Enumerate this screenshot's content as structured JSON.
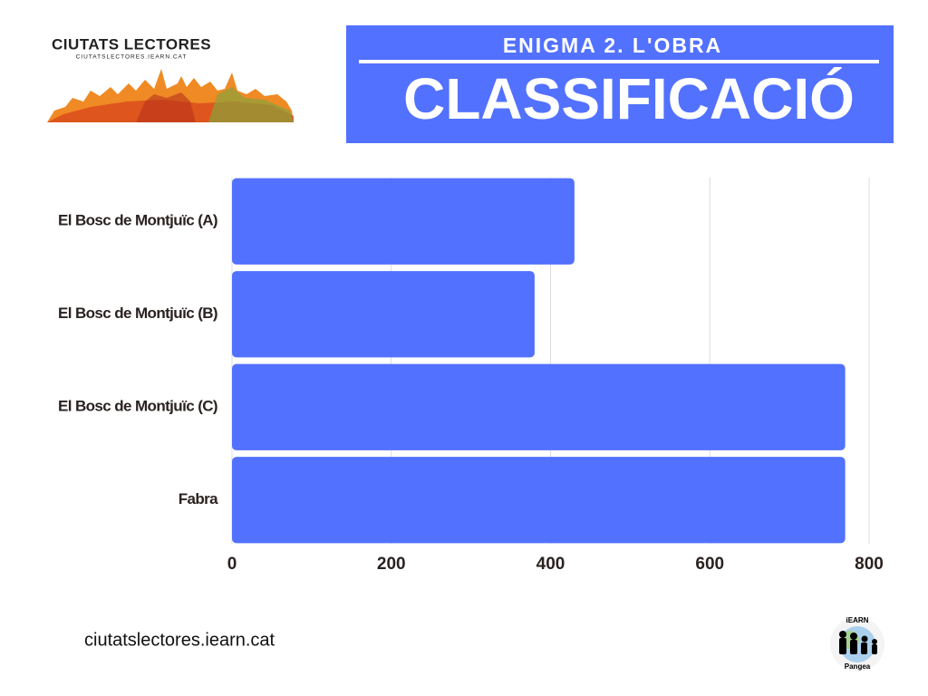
{
  "logo": {
    "title": "CIUTATS LECTORES",
    "subtitle": "CIUTATSLECTORES.IEARN.CAT"
  },
  "header": {
    "kicker": "ENIGMA 2. L'OBRA",
    "title": "CLASSIFICACIÓ"
  },
  "chart_data": {
    "type": "bar",
    "orientation": "horizontal",
    "categories": [
      "El Bosc de Montjuïc (A)",
      "El Bosc de Montjuïc (B)",
      "El Bosc de Montjuïc (C)",
      "Fabra"
    ],
    "values": [
      430,
      380,
      770,
      770
    ],
    "color": "#5271ff",
    "xlim": [
      0,
      800
    ],
    "xticks": [
      0,
      200,
      400,
      600,
      800
    ],
    "grid": true
  },
  "footer": {
    "url": "ciutatslectores.iearn.cat"
  },
  "badge": {
    "top": "iEARN",
    "bottom": "Pangea"
  }
}
